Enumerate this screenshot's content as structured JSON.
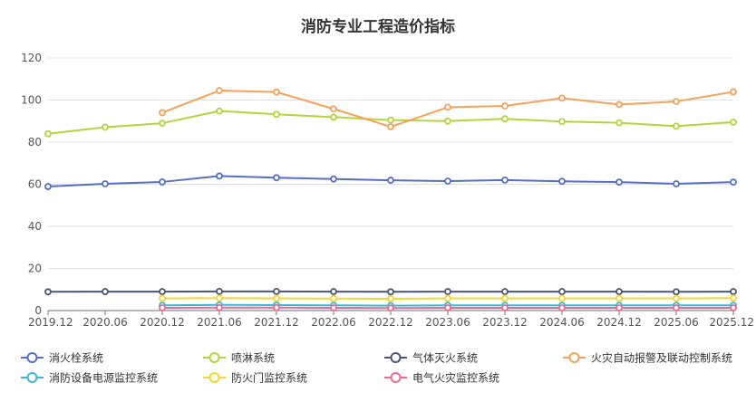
{
  "chart_data": {
    "type": "line",
    "title": "消防专业工程造价指标",
    "xlabel": "",
    "ylabel": "",
    "ylim": [
      0,
      120
    ],
    "yticks": [
      "0",
      "20",
      "40",
      "60",
      "80",
      "100",
      "120"
    ],
    "categories": [
      "2019.12",
      "2020.06",
      "2020.12",
      "2021.06",
      "2021.12",
      "2022.06",
      "2022.12",
      "2023.06",
      "2023.12",
      "2024.06",
      "2024.12",
      "2025.06",
      "2025.12"
    ],
    "grid": true,
    "legend_position": "bottom",
    "series": [
      {
        "name": "消火栓系统",
        "color": "#5470c6",
        "values": [
          58.9,
          60.2,
          61.1,
          63.9,
          63.1,
          62.5,
          61.9,
          61.5,
          62.0,
          61.4,
          61.0,
          60.2,
          61.0
        ]
      },
      {
        "name": "喷淋系统",
        "color": "#b5d43c",
        "values": [
          84.0,
          87.1,
          89.0,
          94.8,
          93.2,
          91.9,
          90.5,
          90.0,
          91.1,
          89.8,
          89.2,
          87.6,
          89.5
        ]
      },
      {
        "name": "气体灭火系统",
        "color": "#4a5578",
        "values": [
          8.9,
          9.0,
          9.0,
          9.1,
          9.1,
          9.0,
          8.9,
          9.0,
          9.0,
          9.0,
          9.0,
          8.9,
          9.0
        ]
      },
      {
        "name": "火灾自动报警及联动控制系统",
        "color": "#f7a05a",
        "values": [
          null,
          null,
          94.0,
          104.5,
          103.8,
          95.8,
          87.3,
          96.6,
          97.2,
          100.9,
          97.9,
          99.3,
          103.9
        ]
      },
      {
        "name": "消防设备电源监控系统",
        "color": "#3bb6d6",
        "values": [
          null,
          null,
          2.5,
          2.7,
          2.6,
          2.5,
          2.3,
          2.5,
          2.5,
          2.5,
          2.5,
          2.5,
          2.5
        ]
      },
      {
        "name": "防火门监控系统",
        "color": "#f5d433",
        "values": [
          null,
          null,
          5.8,
          5.9,
          5.8,
          5.7,
          5.6,
          5.8,
          5.8,
          5.8,
          5.8,
          5.8,
          5.9
        ]
      },
      {
        "name": "电气火灾监控系统",
        "color": "#ee6a8c",
        "values": [
          null,
          null,
          1.3,
          1.4,
          1.4,
          1.3,
          1.2,
          1.3,
          1.3,
          1.3,
          1.3,
          1.3,
          1.3
        ]
      }
    ]
  }
}
